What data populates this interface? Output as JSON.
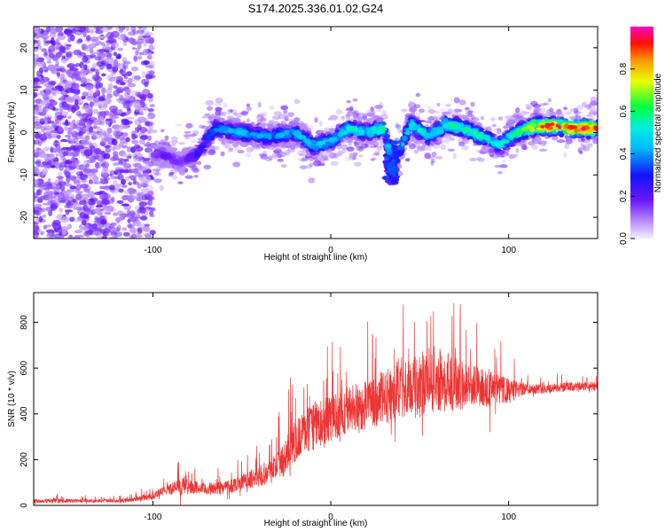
{
  "title": "S174.2025.336.01.02.G24",
  "chart_data": [
    {
      "type": "heatmap",
      "xlabel": "Height of straight line (km)",
      "ylabel": "Frequency (Hz)",
      "xlim": [
        -167,
        150
      ],
      "ylim": [
        -25,
        25
      ],
      "xticks": [
        -100,
        0,
        100
      ],
      "yticks": [
        -20,
        -10,
        0,
        10,
        20
      ],
      "ridge": {
        "description_points_x": [
          -95,
          -85,
          -75,
          -65,
          -50,
          -35,
          -20,
          -10,
          0,
          10,
          20,
          30,
          35,
          45,
          55,
          65,
          75,
          85,
          95,
          105,
          115,
          125,
          135,
          145
        ],
        "frequency": [
          -5,
          -7,
          -5,
          1,
          0,
          -1,
          0,
          -3,
          -2,
          1,
          0,
          1,
          -8,
          2,
          -1,
          2,
          1,
          -1,
          -3,
          0,
          1.5,
          1.5,
          1,
          1
        ],
        "peak_amplitude": [
          0.2,
          0.15,
          0.25,
          0.4,
          0.45,
          0.4,
          0.45,
          0.5,
          0.45,
          0.55,
          0.5,
          0.6,
          0.3,
          0.55,
          0.5,
          0.6,
          0.55,
          0.55,
          0.5,
          0.6,
          0.85,
          0.95,
          0.9,
          0.95
        ]
      },
      "colorbar": {
        "label": "Normalized spectral amplitude",
        "range": [
          0,
          1
        ],
        "ticks": [
          "0.0",
          "0.2",
          "0.4",
          "0.6",
          "0.8"
        ]
      }
    },
    {
      "type": "line",
      "xlabel": "Height of straight line (km)",
      "ylabel": "SNR (10 * v/v)",
      "xlim": [
        -167,
        150
      ],
      "ylim": [
        0,
        930
      ],
      "xticks": [
        -100,
        0,
        100
      ],
      "yticks": [
        0,
        200,
        400,
        600,
        800
      ],
      "color": "#ee3333",
      "series": [
        {
          "name": "SNR",
          "x": [
            -167,
            -150,
            -130,
            -115,
            -100,
            -92,
            -85,
            -78,
            -70,
            -60,
            -50,
            -40,
            -30,
            -25,
            -20,
            -15,
            -10,
            -5,
            0,
            5,
            10,
            20,
            30,
            40,
            50,
            55,
            60,
            70,
            80,
            90,
            100,
            110,
            120,
            130,
            140,
            150
          ],
          "mean": [
            20,
            20,
            20,
            22,
            40,
            70,
            80,
            80,
            70,
            80,
            100,
            130,
            170,
            220,
            280,
            320,
            340,
            360,
            380,
            400,
            420,
            440,
            470,
            500,
            520,
            560,
            550,
            530,
            520,
            510,
            500,
            510,
            510,
            515,
            520,
            520
          ],
          "spread": [
            15,
            15,
            12,
            15,
            25,
            40,
            60,
            50,
            45,
            50,
            60,
            80,
            110,
            140,
            150,
            160,
            170,
            170,
            170,
            170,
            180,
            190,
            200,
            210,
            230,
            250,
            240,
            200,
            160,
            130,
            90,
            40,
            35,
            35,
            35,
            35
          ]
        }
      ]
    }
  ]
}
